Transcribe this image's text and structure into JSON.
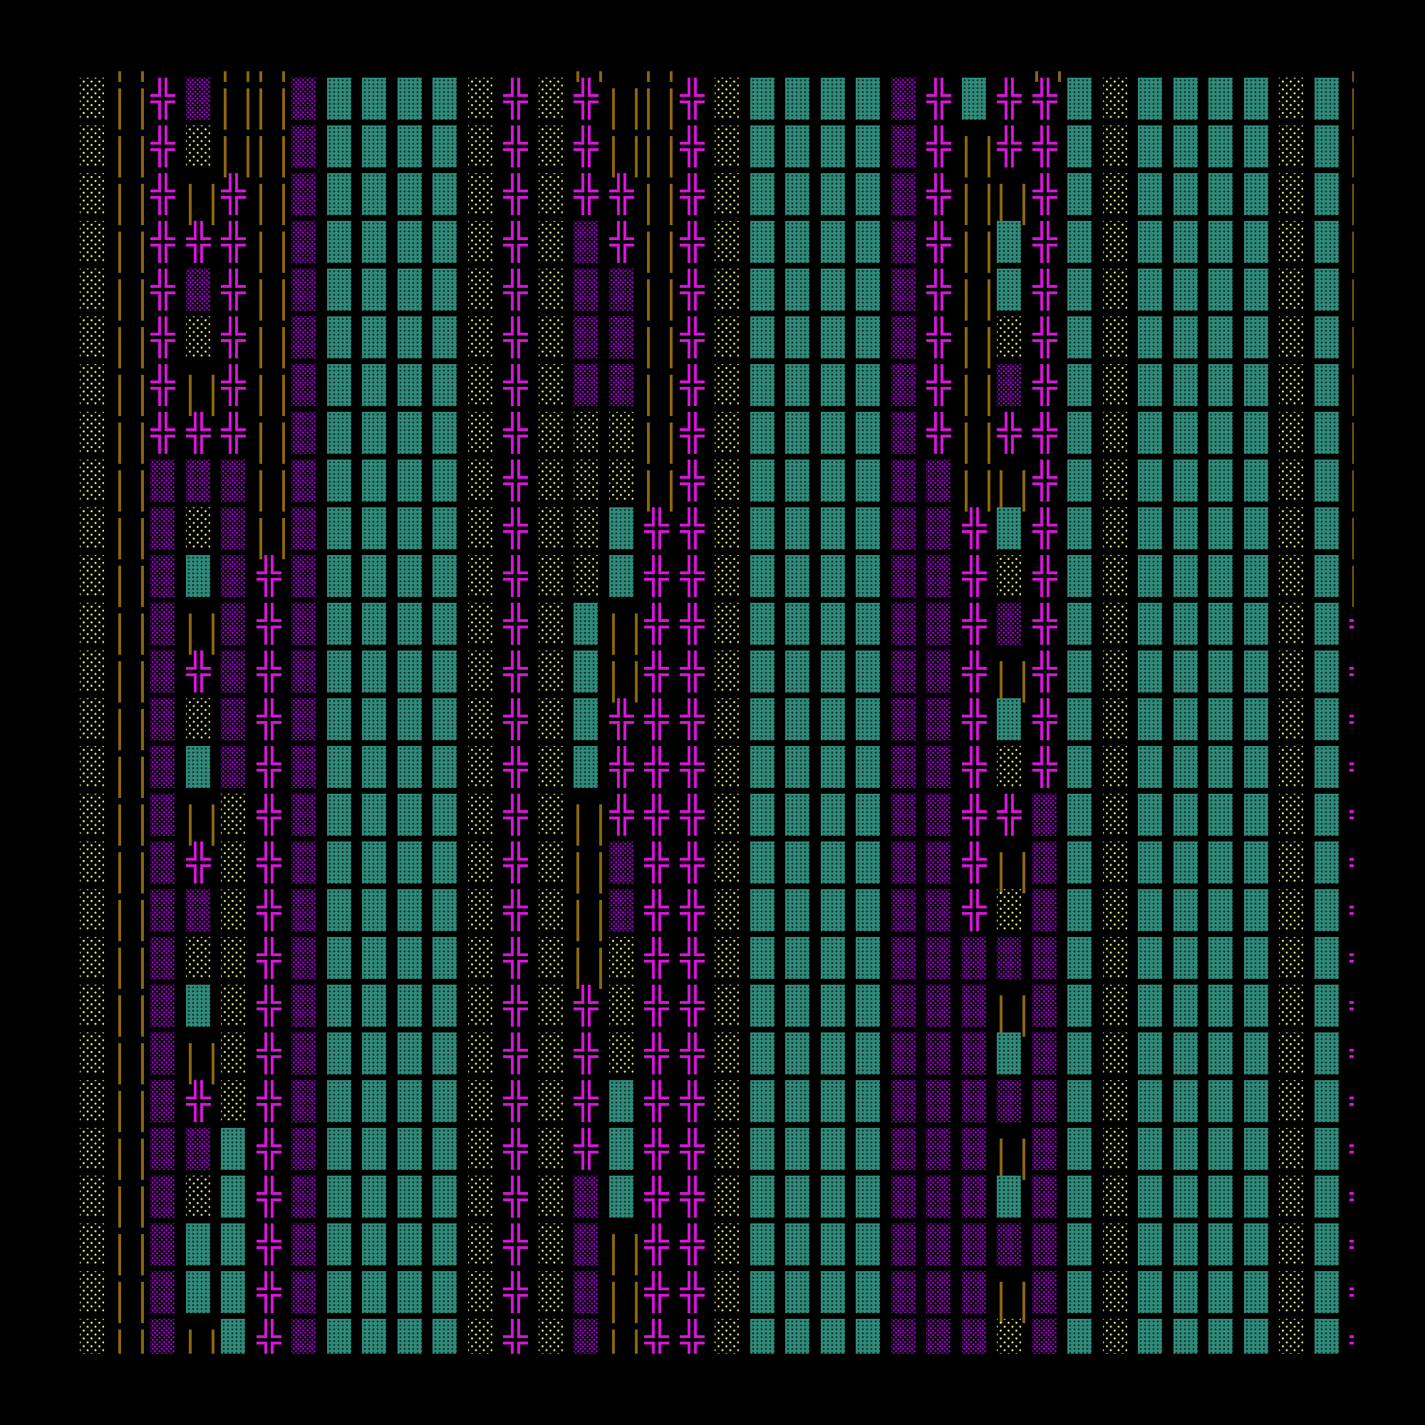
{
  "screen": {
    "rows": [
      " ║  ║║        ║ ║          ║        ║",
      "░║╬▒║║▒▓▓▓▓░╬░╬║║╬░▓▓▓▓▒╬▓╬╬▓░▓▓▓▓░▓║",
      "░║╬░║║▒▓▓▓▓░╬░╬║║╬░▓▓▓▓▒╬║╬╬▓░▓▓▓▓░▓║",
      "░║╬║╬║▒▓▓▓▓░╬░╬╬║╬░▓▓▓▓▒╬║║╬▓░▓▓▓▓░▓║",
      "░║╬╬╬║▒▓▓▓▓░╬░▒╬║╬░▓▓▓▓▒╬║▓╬▓░▓▓▓▓░▓║",
      "░║╬▒╬║▒▓▓▓▓░╬░▒▒║╬░▓▓▓▓▒╬║▓╬▓░▓▓▓▓░▓║",
      "░║╬░╬║▒▓▓▓▓░╬░▒▒║╬░▓▓▓▓▒╬║░╬▓░▓▓▓▓░▓║",
      "░║╬║╬║▒▓▓▓▓░╬░▒▒║╬░▓▓▓▓▒╬║▒╬▓░▓▓▓▓░▓║",
      "░║╬╬╬║▒▓▓▓▓░╬░░░║╬░▓▓▓▓▒╬║╬╬▓░▓▓▓▓░▓║",
      "░║▒▒▒║▒▓▓▓▓░╬░░░║╬░▓▓▓▓▒▒║║╬▓░▓▓▓▓░▓║",
      "░║▒░▒║▒▓▓▓▓░╬░░▓╬╬░▓▓▓▓▒▒╬▓╬▓░▓▓▓▓░▓║",
      "░║▒▓▒╬▒▓▓▓▓░╬░░▓╬╬░▓▓▓▓▒▒╬░╬▓░▓▓▓▓░▓║",
      "░║▒║▒╬▒▓▓▓▓░╬░▓║╬╬░▓▓▓▓▒▒╬▒╬▓░▓▓▓▓░▓╬",
      "░║▒╬▒╬▒▓▓▓▓░╬░▓║╬╬░▓▓▓▓▒▒╬║╬▓░▓▓▓▓░▓╬",
      "░║▒░▒╬▒▓▓▓▓░╬░▓╬╬╬░▓▓▓▓▒▒╬▓╬▓░▓▓▓▓░▓╬",
      "░║▒▓▒╬▒▓▓▓▓░╬░▓╬╬╬░▓▓▓▓▒▒╬░╬▓░▓▓▓▓░▓╬",
      "░║▒║░╬▒▓▓▓▓░╬░║╬╬╬░▓▓▓▓▒▒╬╬▒▓░▓▓▓▓░▓╬",
      "░║▒╬░╬▒▓▓▓▓░╬░║▒╬╬░▓▓▓▓▒▒╬║▒▓░▓▓▓▓░▓╬",
      "░║▒▒░╬▒▓▓▓▓░╬░║▒╬╬░▓▓▓▓▒▒╬░▒▓░▓▓▓▓░▓╬",
      "░║▒░░╬▒▓▓▓▓░╬░║░╬╬░▓▓▓▓▒▒▒▒▒▓░▓▓▓▓░▓╬",
      "░║▒▓░╬▒▓▓▓▓░╬░╬░╬╬░▓▓▓▓▒▒▒║▒▓░▓▓▓▓░▓╬",
      "░║▒║░╬▒▓▓▓▓░╬░╬░╬╬░▓▓▓▓▒▒▒▓▒▓░▓▓▓▓░▓╬",
      "░║▒╬░╬▒▓▓▓▓░╬░╬▓╬╬░▓▓▓▓▒▒▒▒▒▓░▓▓▓▓░▓╬",
      "░║▒▒▓╬▒▓▓▓▓░╬░╬▓╬╬░▓▓▓▓▒▒▒║▒▓░▓▓▓▓░▓╬",
      "░║▒░▓╬▒▓▓▓▓░╬░▒▓╬╬░▓▓▓▓▒▒▒▓▒▓░▓▓▓▓░▓╬",
      "░║▒▓▓╬▒▓▓▓▓░╬░▒║╬╬░▓▓▓▓▒▒▒▒▒▓░▓▓▓▓░▓╬",
      "░║▒▓▓╬▒▓▓▓▓░╬░▒║╬╬░▓▓▓▓▒▒▒║▒▓░▓▓▓▓░▓╬",
      "░║▒║▓╬▒▓▓▓▓░╬░▒║╬╬░▓▓▓▓▒▒▒░▒▓░▓▓▓▓░▓╬"
    ]
  },
  "colors": {
    "background": "#000000",
    "light_shade": "#d9e36a",
    "medium_shade": "#a800d8",
    "dark_shade": "#2f8a7a",
    "double_cross": "#d414d6",
    "double_vertical": "#8b650d"
  },
  "glyph_names": {
    "░": "light-shade",
    "▒": "medium-shade",
    "▓": "dark-shade",
    "╬": "double-cross",
    "║": "double-vertical"
  }
}
